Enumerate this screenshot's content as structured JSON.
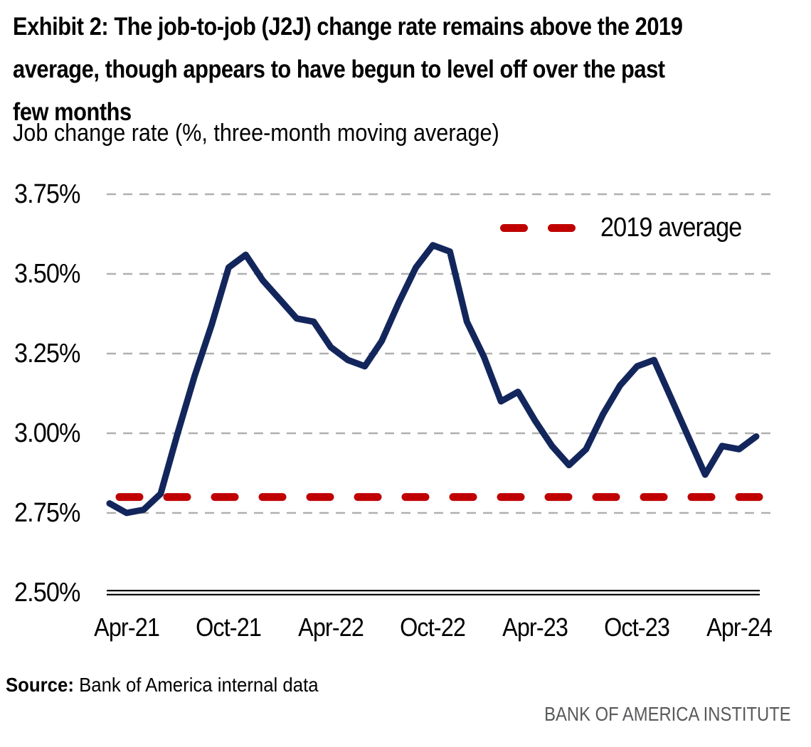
{
  "header": {
    "title_lines": [
      "Exhibit 2: The job-to-job (J2J) change rate remains above the 2019",
      "average, though appears to have begun to level off over the past",
      "few months"
    ],
    "subtitle": "Job change rate (%, three-month moving average)"
  },
  "chart_data": {
    "type": "line",
    "title": "Exhibit 2: The job-to-job (J2J) change rate remains above the 2019 average, though appears to have begun to level off over the past few months",
    "ylabel": "Job change rate (%, three-month moving average)",
    "x": [
      "Mar-21",
      "Apr-21",
      "May-21",
      "Jun-21",
      "Jul-21",
      "Aug-21",
      "Sep-21",
      "Oct-21",
      "Nov-21",
      "Dec-21",
      "Jan-22",
      "Feb-22",
      "Mar-22",
      "Apr-22",
      "May-22",
      "Jun-22",
      "Jul-22",
      "Aug-22",
      "Sep-22",
      "Oct-22",
      "Nov-22",
      "Dec-22",
      "Jan-23",
      "Feb-23",
      "Mar-23",
      "Apr-23",
      "May-23",
      "Jun-23",
      "Jul-23",
      "Aug-23",
      "Sep-23",
      "Oct-23",
      "Nov-23",
      "Dec-23",
      "Jan-24",
      "Feb-24",
      "Mar-24",
      "Apr-24",
      "May-24"
    ],
    "series": [
      {
        "name": "Job change rate (%, three-month moving average)",
        "color": "#13265c",
        "values": [
          2.78,
          2.75,
          2.76,
          2.81,
          3.0,
          3.18,
          3.34,
          3.52,
          3.56,
          3.48,
          3.42,
          3.36,
          3.35,
          3.27,
          3.23,
          3.21,
          3.29,
          3.41,
          3.52,
          3.59,
          3.57,
          3.35,
          3.24,
          3.1,
          3.13,
          3.04,
          2.96,
          2.9,
          2.95,
          3.06,
          3.15,
          3.21,
          3.23,
          3.11,
          2.99,
          2.87,
          2.96,
          2.95,
          2.99
        ]
      }
    ],
    "reference_line": {
      "label": "2019 average",
      "value": 2.8,
      "color": "#c00000",
      "style": "dashed"
    },
    "y_tick_labels": [
      "3.75%",
      "3.50%",
      "3.25%",
      "3.00%",
      "2.75%",
      "2.50%"
    ],
    "y_tick_values": [
      3.75,
      3.5,
      3.25,
      3.0,
      2.75,
      2.5
    ],
    "x_tick_labels": [
      "Apr-21",
      "Oct-21",
      "Apr-22",
      "Oct-22",
      "Apr-23",
      "Oct-23",
      "Apr-24"
    ],
    "ylim": [
      2.5,
      3.79
    ],
    "grid": "horizontal-dashed",
    "legend_position": "top-right"
  },
  "footer": {
    "source_label": "Source:",
    "source_text": " Bank of America internal data",
    "branding": "BANK OF AMERICA INSTITUTE"
  },
  "colors": {
    "line": "#13265c",
    "reference": "#c00000",
    "grid": "#b0b0b0",
    "axis": "#000000",
    "text": "#000000",
    "branding": "#58595b"
  }
}
